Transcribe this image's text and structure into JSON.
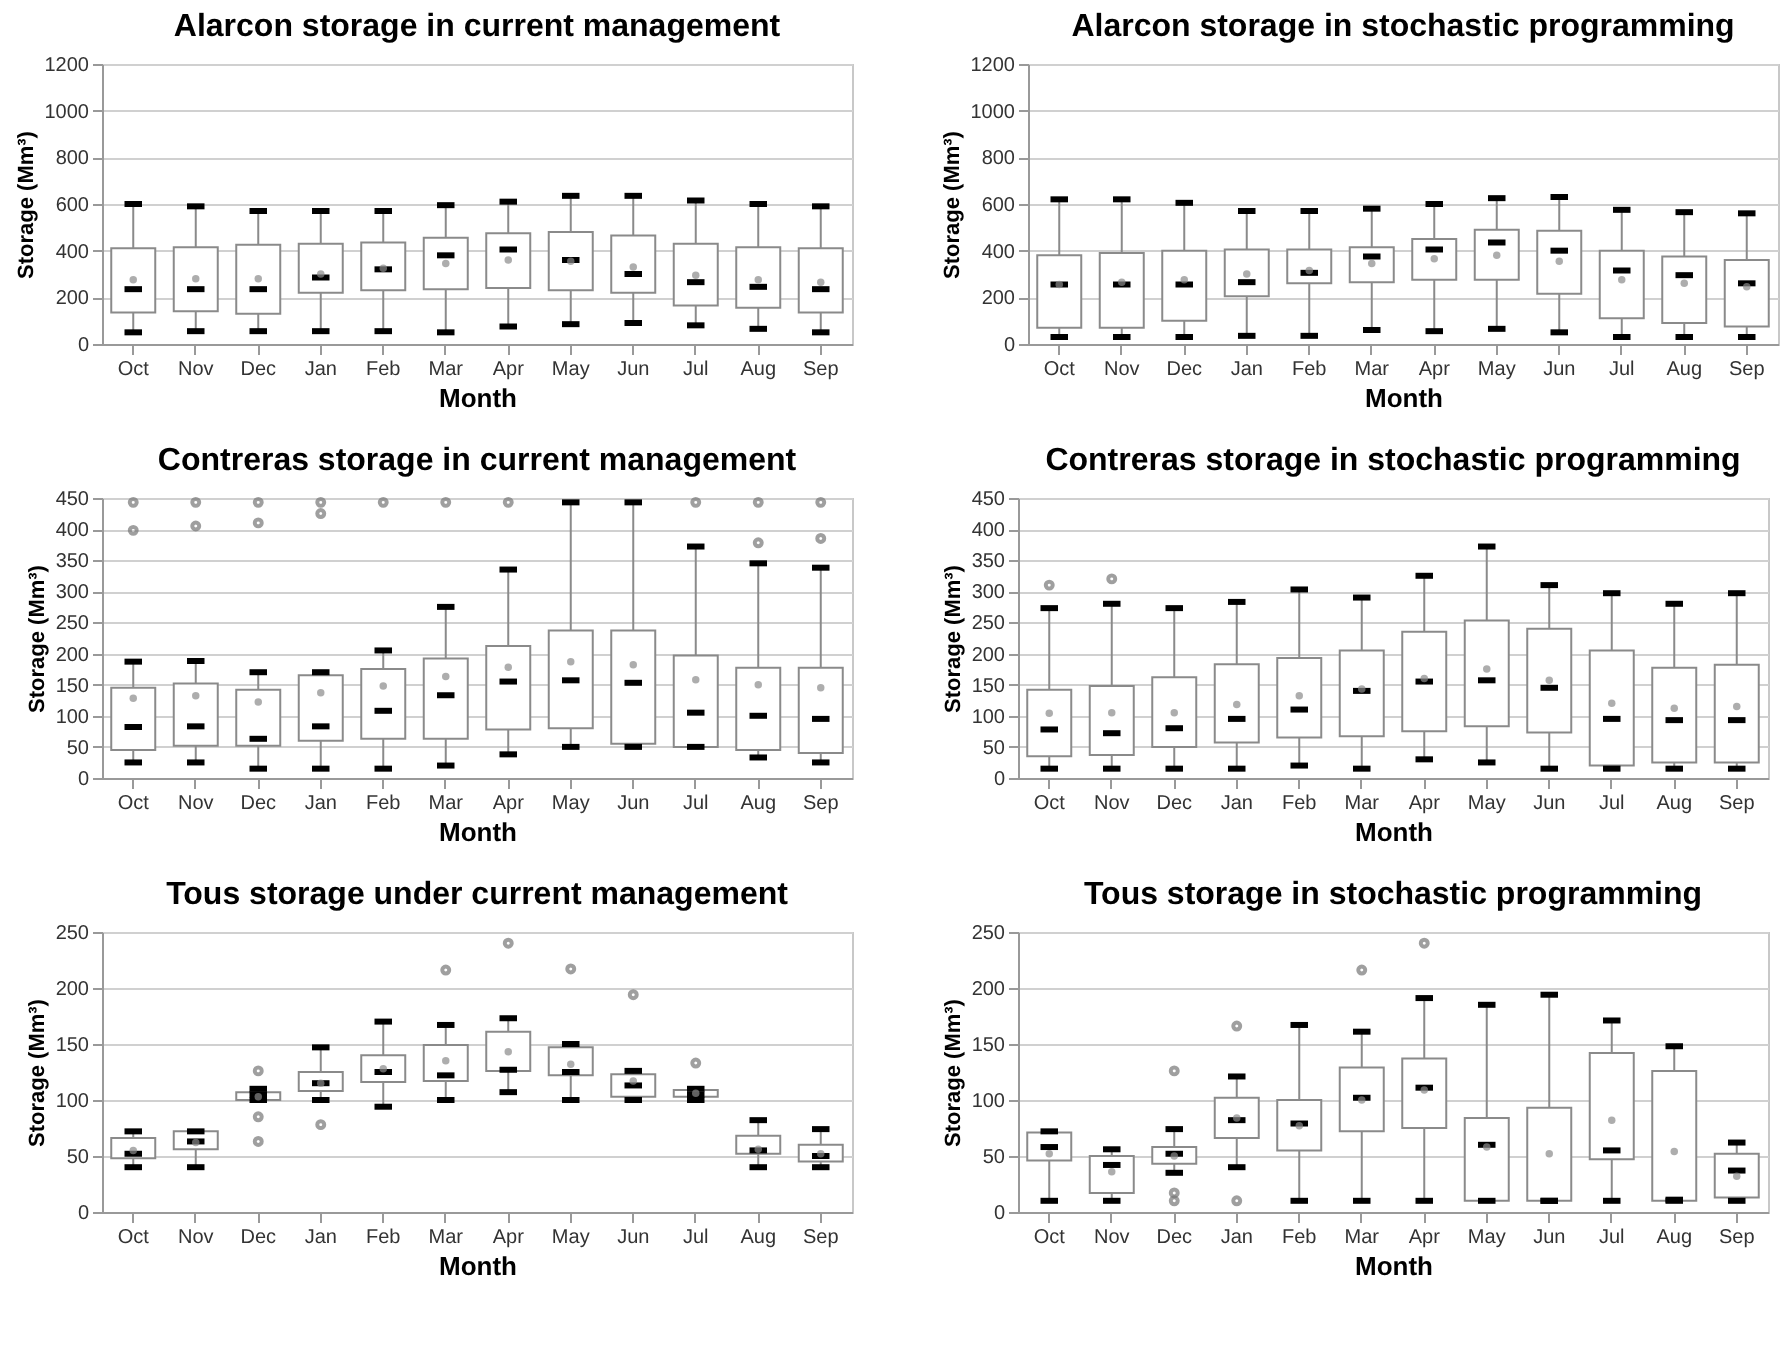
{
  "chart_data": [
    {
      "type": "box",
      "title": "Alarcon storage in current management",
      "xlabel": "Month",
      "ylabel": "Storage (Mm³)",
      "categories": [
        "Oct",
        "Nov",
        "Dec",
        "Jan",
        "Feb",
        "Mar",
        "Apr",
        "May",
        "Jun",
        "Jul",
        "Aug",
        "Sep"
      ],
      "ylim": [
        0,
        1200
      ],
      "yticks": [
        0,
        200,
        400,
        600,
        800,
        1000,
        1200
      ],
      "grid": "y",
      "boxes": [
        {
          "low": 50,
          "q1": 135,
          "median": 235,
          "q3": 410,
          "high": 600,
          "mean": 275
        },
        {
          "low": 55,
          "q1": 140,
          "median": 235,
          "q3": 415,
          "high": 590,
          "mean": 280
        },
        {
          "low": 55,
          "q1": 130,
          "median": 235,
          "q3": 425,
          "high": 570,
          "mean": 280
        },
        {
          "low": 55,
          "q1": 220,
          "median": 285,
          "q3": 430,
          "high": 570,
          "mean": 300
        },
        {
          "low": 55,
          "q1": 230,
          "median": 320,
          "q3": 435,
          "high": 570,
          "mean": 325
        },
        {
          "low": 50,
          "q1": 235,
          "median": 380,
          "q3": 455,
          "high": 595,
          "mean": 345
        },
        {
          "low": 75,
          "q1": 240,
          "median": 405,
          "q3": 475,
          "high": 610,
          "mean": 360
        },
        {
          "low": 85,
          "q1": 230,
          "median": 360,
          "q3": 480,
          "high": 635,
          "mean": 355
        },
        {
          "low": 90,
          "q1": 220,
          "median": 300,
          "q3": 465,
          "high": 635,
          "mean": 330
        },
        {
          "low": 80,
          "q1": 165,
          "median": 265,
          "q3": 430,
          "high": 615,
          "mean": 295
        },
        {
          "low": 65,
          "q1": 155,
          "median": 245,
          "q3": 415,
          "high": 600,
          "mean": 275
        },
        {
          "low": 50,
          "q1": 135,
          "median": 235,
          "q3": 410,
          "high": 590,
          "mean": 265
        }
      ]
    },
    {
      "type": "box",
      "title": "Alarcon storage in stochastic programming",
      "xlabel": "Month",
      "ylabel": "Storage (Mm³)",
      "categories": [
        "Oct",
        "Nov",
        "Dec",
        "Jan",
        "Feb",
        "Mar",
        "Apr",
        "May",
        "Jun",
        "Jul",
        "Aug",
        "Sep"
      ],
      "ylim": [
        0,
        1200
      ],
      "yticks": [
        0,
        200,
        400,
        600,
        800,
        1000,
        1200
      ],
      "grid": "y",
      "boxes": [
        {
          "low": 30,
          "q1": 70,
          "median": 255,
          "q3": 380,
          "high": 620,
          "mean": 255
        },
        {
          "low": 30,
          "q1": 70,
          "median": 255,
          "q3": 390,
          "high": 620,
          "mean": 265
        },
        {
          "low": 30,
          "q1": 100,
          "median": 255,
          "q3": 400,
          "high": 605,
          "mean": 275
        },
        {
          "low": 35,
          "q1": 205,
          "median": 265,
          "q3": 405,
          "high": 570,
          "mean": 300
        },
        {
          "low": 35,
          "q1": 260,
          "median": 305,
          "q3": 405,
          "high": 570,
          "mean": 315
        },
        {
          "low": 60,
          "q1": 265,
          "median": 375,
          "q3": 415,
          "high": 580,
          "mean": 345
        },
        {
          "low": 55,
          "q1": 275,
          "median": 405,
          "q3": 450,
          "high": 600,
          "mean": 365
        },
        {
          "low": 65,
          "q1": 275,
          "median": 435,
          "q3": 490,
          "high": 625,
          "mean": 380
        },
        {
          "low": 50,
          "q1": 215,
          "median": 400,
          "q3": 485,
          "high": 630,
          "mean": 355
        },
        {
          "low": 30,
          "q1": 110,
          "median": 315,
          "q3": 400,
          "high": 575,
          "mean": 275
        },
        {
          "low": 30,
          "q1": 90,
          "median": 295,
          "q3": 375,
          "high": 565,
          "mean": 260
        },
        {
          "low": 30,
          "q1": 75,
          "median": 260,
          "q3": 360,
          "high": 560,
          "mean": 245
        }
      ]
    },
    {
      "type": "box",
      "title": "Contreras storage in current management",
      "xlabel": "Month",
      "ylabel": "Storage (Mm³)",
      "categories": [
        "Oct",
        "Nov",
        "Dec",
        "Jan",
        "Feb",
        "Mar",
        "Apr",
        "May",
        "Jun",
        "Jul",
        "Aug",
        "Sep"
      ],
      "ylim": [
        0,
        450
      ],
      "yticks": [
        0,
        50,
        100,
        150,
        200,
        250,
        300,
        350,
        400,
        450
      ],
      "grid": "y",
      "boxes": [
        {
          "low": 25,
          "q1": 45,
          "median": 82,
          "q3": 145,
          "high": 187,
          "mean": 128,
          "outliers": [
            398,
            443
          ]
        },
        {
          "low": 25,
          "q1": 52,
          "median": 83,
          "q3": 152,
          "high": 188,
          "mean": 132,
          "outliers": [
            405,
            443
          ]
        },
        {
          "low": 15,
          "q1": 52,
          "median": 63,
          "q3": 142,
          "high": 170,
          "mean": 122,
          "outliers": [
            410,
            443
          ]
        },
        {
          "low": 15,
          "q1": 60,
          "median": 83,
          "q3": 165,
          "high": 170,
          "mean": 137,
          "outliers": [
            425,
            443
          ]
        },
        {
          "low": 15,
          "q1": 63,
          "median": 108,
          "q3": 175,
          "high": 205,
          "mean": 148,
          "outliers": [
            443
          ]
        },
        {
          "low": 20,
          "q1": 63,
          "median": 133,
          "q3": 192,
          "high": 275,
          "mean": 163,
          "outliers": [
            443
          ]
        },
        {
          "low": 38,
          "q1": 78,
          "median": 155,
          "q3": 212,
          "high": 335,
          "mean": 178,
          "outliers": [
            443
          ]
        },
        {
          "low": 50,
          "q1": 80,
          "median": 157,
          "q3": 237,
          "high": 443,
          "mean": 187
        },
        {
          "low": 50,
          "q1": 55,
          "median": 153,
          "q3": 237,
          "high": 443,
          "mean": 182
        },
        {
          "low": 50,
          "q1": 50,
          "median": 105,
          "q3": 197,
          "high": 372,
          "mean": 158,
          "outliers": [
            443
          ]
        },
        {
          "low": 33,
          "q1": 45,
          "median": 100,
          "q3": 177,
          "high": 345,
          "mean": 150,
          "outliers": [
            378,
            443
          ]
        },
        {
          "low": 25,
          "q1": 40,
          "median": 95,
          "q3": 177,
          "high": 338,
          "mean": 145,
          "outliers": [
            385,
            443
          ]
        }
      ]
    },
    {
      "type": "box",
      "title": "Contreras storage in stochastic programming",
      "xlabel": "Month",
      "ylabel": "Storage (Mm³)",
      "categories": [
        "Oct",
        "Nov",
        "Dec",
        "Jan",
        "Feb",
        "Mar",
        "Apr",
        "May",
        "Jun",
        "Jul",
        "Aug",
        "Sep"
      ],
      "ylim": [
        0,
        450
      ],
      "yticks": [
        0,
        50,
        100,
        150,
        200,
        250,
        300,
        350,
        400,
        450
      ],
      "grid": "y",
      "boxes": [
        {
          "low": 15,
          "q1": 35,
          "median": 78,
          "q3": 142,
          "high": 273,
          "mean": 104,
          "outliers": [
            310
          ]
        },
        {
          "low": 15,
          "q1": 37,
          "median": 72,
          "q3": 148,
          "high": 280,
          "mean": 105,
          "outliers": [
            320
          ]
        },
        {
          "low": 15,
          "q1": 50,
          "median": 80,
          "q3": 162,
          "high": 273,
          "mean": 105
        },
        {
          "low": 15,
          "q1": 57,
          "median": 95,
          "q3": 183,
          "high": 283,
          "mean": 118
        },
        {
          "low": 20,
          "q1": 65,
          "median": 110,
          "q3": 193,
          "high": 303,
          "mean": 132
        },
        {
          "low": 15,
          "q1": 67,
          "median": 140,
          "q3": 205,
          "high": 290,
          "mean": 143
        },
        {
          "low": 30,
          "q1": 75,
          "median": 155,
          "q3": 235,
          "high": 325,
          "mean": 160
        },
        {
          "low": 25,
          "q1": 83,
          "median": 157,
          "q3": 253,
          "high": 372,
          "mean": 175
        },
        {
          "low": 15,
          "q1": 73,
          "median": 145,
          "q3": 240,
          "high": 310,
          "mean": 157
        },
        {
          "low": 15,
          "q1": 20,
          "median": 95,
          "q3": 205,
          "high": 297,
          "mean": 120
        },
        {
          "low": 15,
          "q1": 25,
          "median": 93,
          "q3": 177,
          "high": 280,
          "mean": 112
        },
        {
          "low": 15,
          "q1": 25,
          "median": 93,
          "q3": 182,
          "high": 297,
          "mean": 115
        }
      ]
    },
    {
      "type": "box",
      "title": "Tous storage under current management",
      "xlabel": "Month",
      "ylabel": "Storage (Mm³)",
      "categories": [
        "Oct",
        "Nov",
        "Dec",
        "Jan",
        "Feb",
        "Mar",
        "Apr",
        "May",
        "Jun",
        "Jul",
        "Aug",
        "Sep"
      ],
      "ylim": [
        0,
        250
      ],
      "yticks": [
        0,
        50,
        100,
        150,
        200,
        250
      ],
      "grid": "y",
      "boxes": [
        {
          "low": 40,
          "q1": 48,
          "median": 52,
          "q3": 66,
          "high": 72,
          "mean": 55
        },
        {
          "low": 40,
          "q1": 56,
          "median": 63,
          "q3": 72,
          "high": 72,
          "mean": 62
        },
        {
          "low": 100,
          "q1": 100,
          "median": 105,
          "q3": 107,
          "high": 110,
          "mean": 103,
          "outliers": [
            63,
            85,
            126
          ]
        },
        {
          "low": 100,
          "q1": 108,
          "median": 115,
          "q3": 125,
          "high": 147,
          "mean": 115,
          "outliers": [
            78
          ]
        },
        {
          "low": 94,
          "q1": 116,
          "median": 125,
          "q3": 140,
          "high": 170,
          "mean": 128
        },
        {
          "low": 100,
          "q1": 117,
          "median": 122,
          "q3": 149,
          "high": 167,
          "mean": 135,
          "outliers": [
            216
          ]
        },
        {
          "low": 107,
          "q1": 126,
          "median": 127,
          "q3": 161,
          "high": 173,
          "mean": 143,
          "outliers": [
            240
          ]
        },
        {
          "low": 100,
          "q1": 122,
          "median": 125,
          "q3": 147,
          "high": 150,
          "mean": 132,
          "outliers": [
            217
          ]
        },
        {
          "low": 100,
          "q1": 103,
          "median": 113,
          "q3": 123,
          "high": 126,
          "mean": 117,
          "outliers": [
            194
          ]
        },
        {
          "low": 100,
          "q1": 103,
          "median": 105,
          "q3": 109,
          "high": 110,
          "mean": 106,
          "outliers": [
            133
          ]
        },
        {
          "low": 40,
          "q1": 52,
          "median": 55,
          "q3": 68,
          "high": 82,
          "mean": 56
        },
        {
          "low": 40,
          "q1": 45,
          "median": 50,
          "q3": 60,
          "high": 74,
          "mean": 52
        }
      ]
    },
    {
      "type": "box",
      "title": "Tous storage in stochastic programming",
      "xlabel": "Month",
      "ylabel": "Storage (Mm³)",
      "categories": [
        "Oct",
        "Nov",
        "Dec",
        "Jan",
        "Feb",
        "Mar",
        "Apr",
        "May",
        "Jun",
        "Jul",
        "Aug",
        "Sep"
      ],
      "ylim": [
        0,
        250
      ],
      "yticks": [
        0,
        50,
        100,
        150,
        200,
        250
      ],
      "grid": "y",
      "boxes": [
        {
          "low": 10,
          "q1": 46,
          "median": 58,
          "q3": 71,
          "high": 72,
          "mean": 52
        },
        {
          "low": 10,
          "q1": 17,
          "median": 42,
          "q3": 50,
          "high": 56,
          "mean": 36
        },
        {
          "low": 35,
          "q1": 43,
          "median": 52,
          "q3": 58,
          "high": 74,
          "mean": 50,
          "outliers": [
            10,
            17,
            126
          ]
        },
        {
          "low": 40,
          "q1": 66,
          "median": 82,
          "q3": 102,
          "high": 121,
          "mean": 84,
          "outliers": [
            10,
            166
          ]
        },
        {
          "low": 10,
          "q1": 55,
          "median": 79,
          "q3": 100,
          "high": 167,
          "mean": 77
        },
        {
          "low": 10,
          "q1": 72,
          "median": 102,
          "q3": 129,
          "high": 161,
          "mean": 100,
          "outliers": [
            216
          ]
        },
        {
          "low": 10,
          "q1": 75,
          "median": 111,
          "q3": 137,
          "high": 191,
          "mean": 109,
          "outliers": [
            240
          ]
        },
        {
          "low": 10,
          "q1": 10,
          "median": 60,
          "q3": 84,
          "high": 185,
          "mean": 58
        },
        {
          "low": 10,
          "q1": 10,
          "median": 10,
          "q3": 93,
          "high": 194,
          "mean": 52
        },
        {
          "low": 10,
          "q1": 47,
          "median": 55,
          "q3": 142,
          "high": 171,
          "mean": 82
        },
        {
          "low": 10,
          "q1": 10,
          "median": 11,
          "q3": 126,
          "high": 148,
          "mean": 54
        },
        {
          "low": 10,
          "q1": 13,
          "median": 37,
          "q3": 52,
          "high": 62,
          "mean": 32
        }
      ]
    }
  ]
}
